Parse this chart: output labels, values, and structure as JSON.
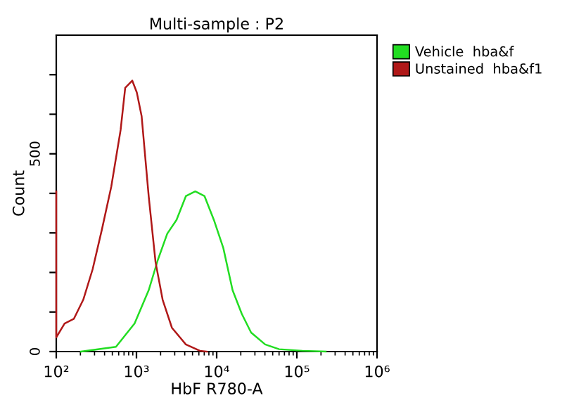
{
  "chart_data": {
    "type": "line",
    "title": "Multi-sample : P2",
    "xlabel": "HbF R780-A",
    "ylabel": "Count",
    "log": "x",
    "xlim": [
      100,
      1000000
    ],
    "xticks": [
      {
        "value": 100,
        "label": "10²"
      },
      {
        "value": 1000,
        "label": "10³"
      },
      {
        "value": 10000,
        "label": "10⁴"
      },
      {
        "value": 100000,
        "label": "10⁵"
      },
      {
        "value": 1000000,
        "label": "10⁶"
      }
    ],
    "ylim": [
      0,
      800
    ],
    "yticks": [
      0,
      {
        "value": 100,
        "label": null
      },
      {
        "value": 200,
        "label": null
      },
      {
        "value": 300,
        "label": null
      },
      {
        "value": 400,
        "label": null
      },
      500,
      {
        "value": 600,
        "label": null
      },
      {
        "value": 700,
        "label": null
      }
    ],
    "grid": false,
    "legend": "right",
    "marker": "none",
    "line_style": "solid",
    "series": [
      {
        "name": "Vehicle  hba&f",
        "color": "#22dd22",
        "x": [
          203,
          555,
          948,
          1420,
          1850,
          2420,
          3160,
          4130,
          5410,
          7060,
          9230,
          12100,
          15800,
          20600,
          26900,
          40300,
          60100,
          117000,
          229000
        ],
        "values": [
          0,
          12,
          71,
          155,
          232,
          298,
          333,
          393,
          405,
          393,
          333,
          262,
          155,
          95,
          48,
          18,
          6,
          2,
          0
        ]
      },
      {
        "name": "Unstained  hba&f1",
        "color": "#b01818",
        "x": [
          100,
          100,
          127,
          166,
          217,
          284,
          372,
          485,
          634,
          724,
          887,
          1010,
          1160,
          1420,
          1730,
          2120,
          2770,
          4130,
          6180,
          7550
        ],
        "values": [
          405,
          36,
          71,
          83,
          131,
          208,
          310,
          417,
          560,
          667,
          685,
          655,
          595,
          393,
          226,
          131,
          60,
          18,
          2,
          0
        ]
      }
    ]
  }
}
